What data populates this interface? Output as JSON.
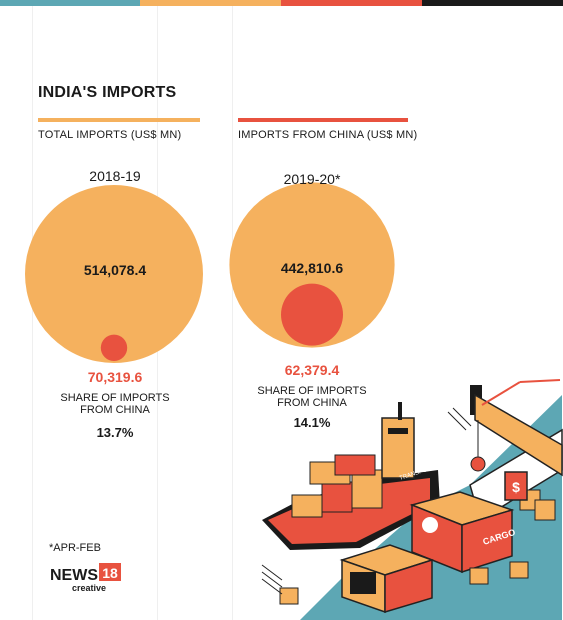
{
  "colors": {
    "total": "#f5b15e",
    "china": "#e8523f",
    "topbar": [
      "#5da7b4",
      "#f5b15e",
      "#e8523f",
      "#1a1a1a"
    ]
  },
  "header": {
    "title": "INDIA'S IMPORTS",
    "legend_total": "TOTAL IMPORTS (US$ MN)",
    "legend_china": "IMPORTS FROM CHINA (US$ MN)"
  },
  "panels": [
    {
      "period": "2018-19",
      "total_label": "514,078.4",
      "china_label": "70,319.6",
      "share_label_1": "SHARE OF IMPORTS",
      "share_label_2": "FROM CHINA",
      "share_pct": "13.7%"
    },
    {
      "period": "2019-20*",
      "total_label": "442,810.6",
      "china_label": "62,379.4",
      "share_label_1": "SHARE OF IMPORTS",
      "share_label_2": "FROM CHINA",
      "share_pct": "14.1%"
    }
  ],
  "footer": {
    "footnote": "*APR-FEB",
    "logo_main": "NEWS",
    "logo_num": "18",
    "logo_sub": "creative"
  },
  "illustration": {
    "ship_label": "TRANSPORT",
    "container_label": "CARGO",
    "sign_symbol": "$"
  },
  "chart_data": {
    "type": "bubble",
    "title": "INDIA'S IMPORTS",
    "categories": [
      "2018-19",
      "2019-20*"
    ],
    "series": [
      {
        "name": "TOTAL IMPORTS (US$ MN)",
        "values": [
          514078.4,
          442810.6
        ]
      },
      {
        "name": "IMPORTS FROM CHINA (US$ MN)",
        "values": [
          70319.6,
          62379.4
        ]
      }
    ],
    "share_from_china_pct": [
      13.7,
      14.1
    ],
    "annotations": [
      "*APR-FEB"
    ]
  }
}
